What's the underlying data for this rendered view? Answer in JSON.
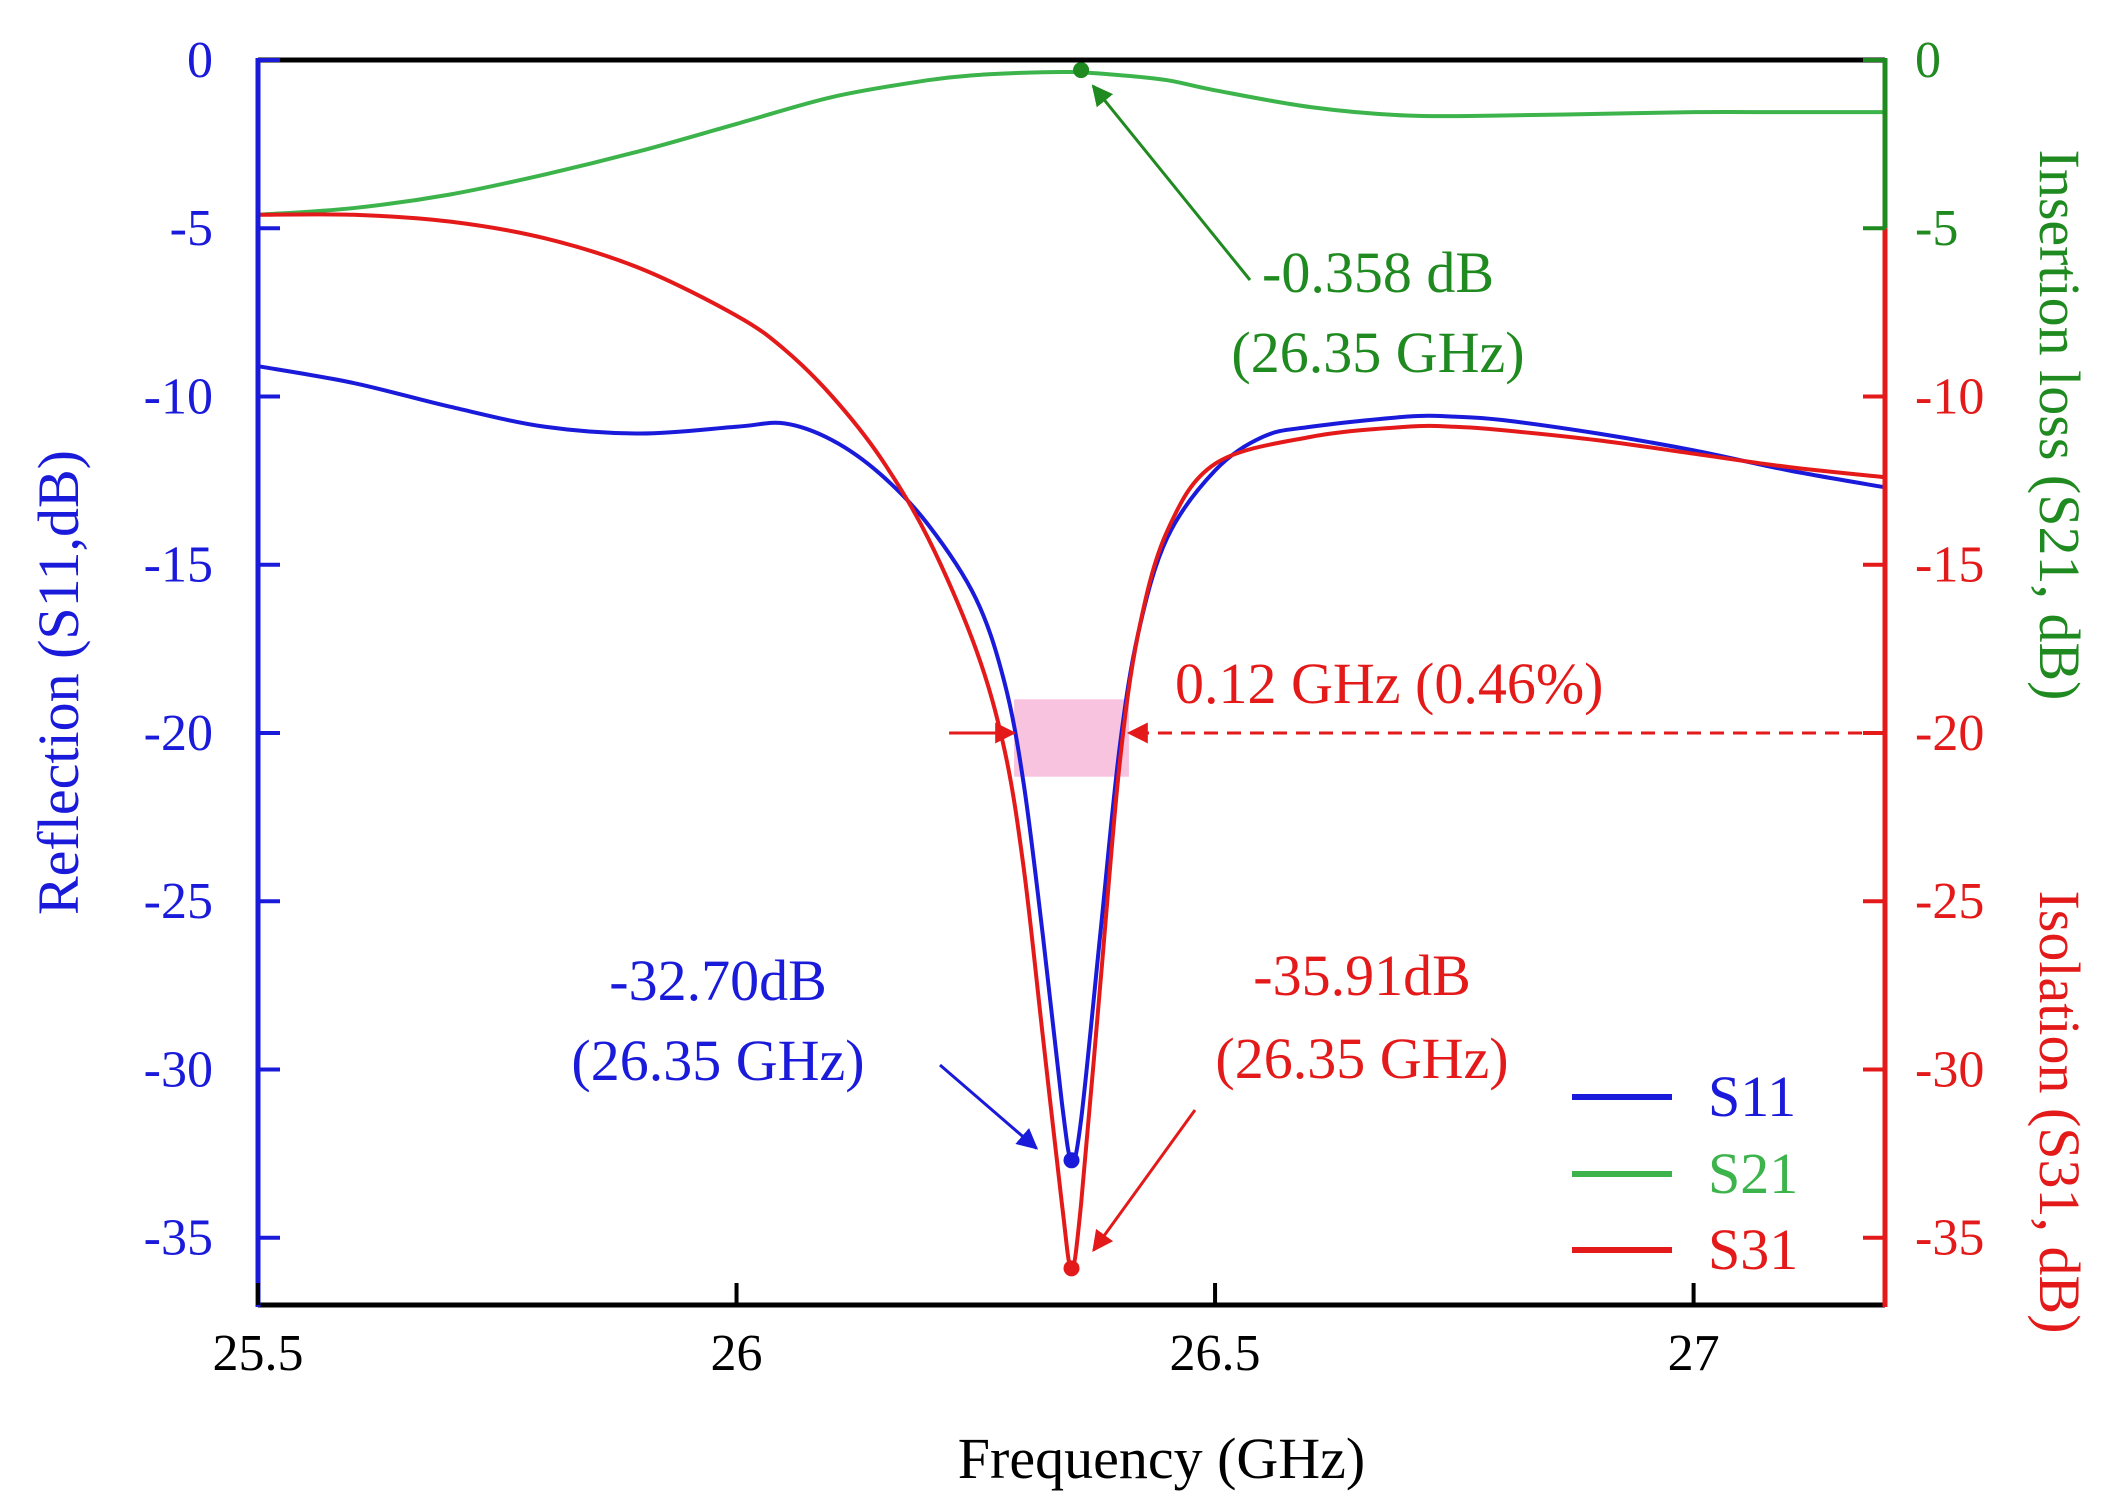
{
  "chart_data": {
    "type": "line",
    "x_axis": {
      "label": "Frequency (GHz)",
      "min": 25.5,
      "max": 27.2,
      "ticks": [
        25.5,
        26,
        26.5,
        27
      ],
      "tick_labels": [
        "25.5",
        "26",
        "26.5",
        "27"
      ]
    },
    "y_left": {
      "label": "Reflection (S11,dB)",
      "min": -37,
      "max": 0,
      "ticks": [
        0,
        -5,
        -10,
        -15,
        -20,
        -25,
        -30,
        -35
      ],
      "tick_labels": [
        "0",
        "-5",
        "-10",
        "-15",
        "-20",
        "-25",
        "-30",
        "-35"
      ],
      "color": "#1a1adb"
    },
    "y_right_upper": {
      "label": "Insertion loss (S21, dB)",
      "ticks": [
        0,
        -5
      ],
      "tick_labels": [
        "0",
        "-5"
      ],
      "color": "#1f8a1f"
    },
    "y_right_lower": {
      "label": "Isolation (S31, dB)",
      "ticks": [
        -10,
        -15,
        -20,
        -25,
        -30,
        -35
      ],
      "tick_labels": [
        "-10",
        "-15",
        "-20",
        "-25",
        "-30",
        "-35"
      ],
      "color": "#e41a1a"
    },
    "series": [
      {
        "name": "S11",
        "color": "#1a1adb",
        "x": [
          25.5,
          25.6,
          25.7,
          25.8,
          25.9,
          26.0,
          26.05,
          26.1,
          26.15,
          26.2,
          26.25,
          26.28,
          26.3,
          26.32,
          26.34,
          26.35,
          26.36,
          26.38,
          26.4,
          26.42,
          26.45,
          26.5,
          26.55,
          26.6,
          26.7,
          26.75,
          26.8,
          26.9,
          27.0,
          27.1,
          27.2
        ],
        "values": [
          -9.1,
          -9.6,
          -10.3,
          -10.9,
          -11.1,
          -10.9,
          -10.8,
          -11.3,
          -12.3,
          -13.8,
          -16.0,
          -18.5,
          -21.5,
          -26.0,
          -31.0,
          -32.7,
          -31.5,
          -26.0,
          -20.5,
          -17.0,
          -14.2,
          -12.2,
          -11.2,
          -10.9,
          -10.6,
          -10.6,
          -10.7,
          -11.1,
          -11.6,
          -12.2,
          -12.7
        ]
      },
      {
        "name": "S21",
        "color": "#3cb44b",
        "x": [
          25.5,
          25.6,
          25.7,
          25.8,
          25.9,
          26.0,
          26.1,
          26.2,
          26.25,
          26.3,
          26.35,
          26.4,
          26.45,
          26.5,
          26.6,
          26.7,
          26.8,
          26.9,
          27.0,
          27.1,
          27.2
        ],
        "values": [
          -4.6,
          -4.4,
          -4.0,
          -3.4,
          -2.7,
          -1.9,
          -1.1,
          -0.6,
          -0.45,
          -0.38,
          -0.358,
          -0.45,
          -0.6,
          -0.9,
          -1.4,
          -1.65,
          -1.65,
          -1.6,
          -1.55,
          -1.55,
          -1.55
        ]
      },
      {
        "name": "S31",
        "color": "#e41a1a",
        "x": [
          25.5,
          25.6,
          25.7,
          25.8,
          25.9,
          26.0,
          26.05,
          26.1,
          26.15,
          26.2,
          26.25,
          26.28,
          26.3,
          26.32,
          26.34,
          26.35,
          26.36,
          26.38,
          26.4,
          26.42,
          26.45,
          26.5,
          26.6,
          26.7,
          26.75,
          26.8,
          26.9,
          27.0,
          27.1,
          27.2
        ],
        "values": [
          -4.6,
          -4.6,
          -4.8,
          -5.3,
          -6.2,
          -7.6,
          -8.6,
          -10.0,
          -11.8,
          -14.2,
          -17.5,
          -20.5,
          -24.0,
          -29.0,
          -34.0,
          -35.91,
          -34.0,
          -27.5,
          -21.0,
          -17.0,
          -14.0,
          -12.0,
          -11.2,
          -10.9,
          -10.9,
          -11.0,
          -11.3,
          -11.7,
          -12.1,
          -12.4
        ]
      }
    ],
    "annotations": [
      {
        "id": "s21",
        "line1": "-0.358 dB",
        "line2": "(26.35 GHz)",
        "color": "#1f8a1f",
        "point_x": 26.36,
        "point_y": -0.358
      },
      {
        "id": "s11",
        "line1": "-32.70dB",
        "line2": "(26.35 GHz)",
        "color": "#1a1adb",
        "point_x": 26.35,
        "point_y": -32.7
      },
      {
        "id": "s31",
        "line1": "-35.91dB",
        "line2": "(26.35 GHz)",
        "color": "#e41a1a",
        "point_x": 26.35,
        "point_y": -35.91
      },
      {
        "id": "bw",
        "text": "0.12 GHz (0.46%)",
        "color": "#e41a1a",
        "x_start": 26.29,
        "x_end": 26.41,
        "y_level": -20,
        "band_y": [
          -19,
          -21.3
        ]
      }
    ],
    "legend": {
      "position": "bottom-right",
      "entries": [
        "S11",
        "S21",
        "S31"
      ]
    }
  }
}
